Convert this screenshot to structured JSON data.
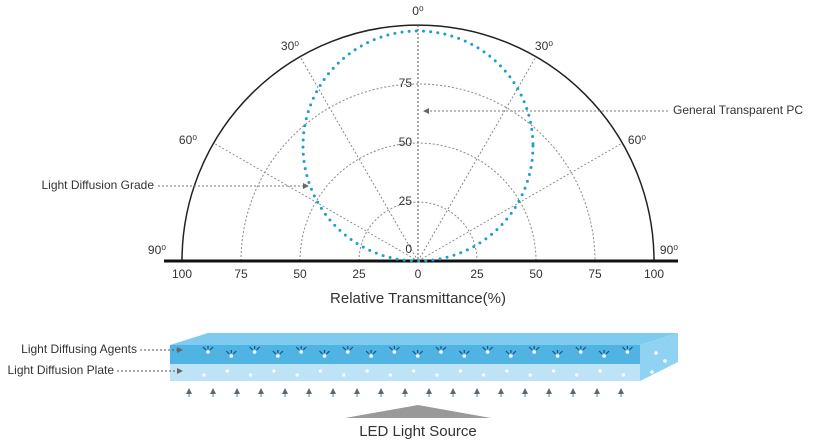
{
  "polar": {
    "angle_labels": {
      "top": "0⁰",
      "left30": "30⁰",
      "right30": "30⁰",
      "left60": "60⁰",
      "right60": "60⁰",
      "left90": "90⁰",
      "right90": "90⁰"
    },
    "radial_ticks": [
      "100",
      "75",
      "50",
      "25",
      "0",
      "25",
      "50",
      "75",
      "100"
    ],
    "vertical_ticks": [
      "0",
      "25",
      "50",
      "75"
    ],
    "x_axis_label": "Relative Transmittance(%)",
    "annotations": {
      "transparent": "General Transparent PC",
      "diffusion": "Light Diffusion Grade"
    }
  },
  "plate": {
    "agents_label": "Light Diffusing Agents",
    "plate_label": "Light Diffusion Plate",
    "source_label": "LED Light Source"
  }
}
